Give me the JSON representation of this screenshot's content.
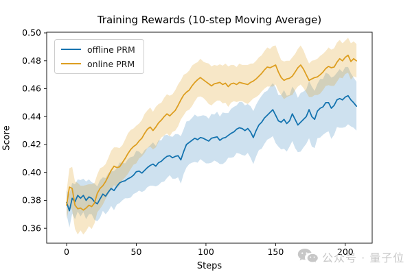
{
  "watermark": {
    "icon": "wechat-icon",
    "text": "公众号 · 量子位",
    "color": "#b5b5b5"
  },
  "chart_data": {
    "type": "line",
    "title": "Training Rewards (10-step Moving Average)",
    "xlabel": "Steps",
    "ylabel": "Score",
    "xlim": [
      -14.3,
      219.3
    ],
    "ylim": [
      0.3493,
      0.5005
    ],
    "grid": false,
    "legend_position": "upper left",
    "xticks": {
      "values": [
        0,
        50,
        100,
        150,
        200
      ],
      "labels": [
        "0",
        "50",
        "100",
        "150",
        "200"
      ]
    },
    "yticks": {
      "values": [
        0.36,
        0.38,
        0.4,
        0.42,
        0.44,
        0.46,
        0.48,
        0.5
      ],
      "labels": [
        "0.36",
        "0.38",
        "0.40",
        "0.42",
        "0.44",
        "0.46",
        "0.48",
        "0.50"
      ]
    },
    "x": [
      0,
      2,
      4,
      6,
      8,
      10,
      12,
      14,
      16,
      18,
      20,
      22,
      24,
      26,
      28,
      30,
      32,
      34,
      36,
      38,
      40,
      42,
      44,
      46,
      48,
      50,
      52,
      54,
      56,
      58,
      60,
      62,
      64,
      66,
      68,
      70,
      72,
      74,
      76,
      78,
      80,
      82,
      84,
      86,
      88,
      90,
      92,
      94,
      96,
      98,
      100,
      102,
      104,
      106,
      108,
      110,
      112,
      114,
      116,
      118,
      120,
      122,
      124,
      126,
      128,
      130,
      132,
      134,
      136,
      138,
      140,
      142,
      144,
      146,
      148,
      150,
      152,
      154,
      156,
      158,
      160,
      162,
      164,
      166,
      168,
      170,
      172,
      174,
      176,
      178,
      180,
      182,
      184,
      186,
      188,
      190,
      192,
      194,
      196,
      198,
      200,
      202,
      204,
      206,
      208
    ],
    "series": [
      {
        "name": "offline PRM",
        "color": "#1473af",
        "band_fill": "rgba(31,119,180,0.22)",
        "mean": [
          0.3785,
          0.3725,
          0.3815,
          0.379,
          0.3835,
          0.3815,
          0.3835,
          0.38,
          0.3825,
          0.3815,
          0.379,
          0.3775,
          0.381,
          0.3845,
          0.383,
          0.386,
          0.3885,
          0.387,
          0.39,
          0.3925,
          0.3935,
          0.394,
          0.3955,
          0.3965,
          0.398,
          0.4005,
          0.401,
          0.3995,
          0.4015,
          0.4035,
          0.405,
          0.406,
          0.4045,
          0.407,
          0.408,
          0.41,
          0.4115,
          0.412,
          0.4105,
          0.4115,
          0.412,
          0.409,
          0.415,
          0.42,
          0.4215,
          0.423,
          0.4245,
          0.4235,
          0.425,
          0.4245,
          0.4235,
          0.4225,
          0.4245,
          0.425,
          0.4255,
          0.423,
          0.4245,
          0.425,
          0.4265,
          0.428,
          0.429,
          0.431,
          0.432,
          0.4315,
          0.43,
          0.4315,
          0.429,
          0.425,
          0.43,
          0.434,
          0.436,
          0.439,
          0.441,
          0.443,
          0.445,
          0.441,
          0.437,
          0.436,
          0.438,
          0.435,
          0.437,
          0.442,
          0.438,
          0.434,
          0.436,
          0.438,
          0.44,
          0.445,
          0.44,
          0.438,
          0.444,
          0.446,
          0.447,
          0.45,
          0.45,
          0.446,
          0.448,
          0.452,
          0.453,
          0.452,
          0.454,
          0.455,
          0.452,
          0.45,
          0.4475
        ],
        "band": [
          0.0085,
          0.012,
          0.011,
          0.0125,
          0.0115,
          0.013,
          0.012,
          0.0135,
          0.0125,
          0.0115,
          0.013,
          0.0125,
          0.0135,
          0.012,
          0.013,
          0.0135,
          0.0125,
          0.014,
          0.013,
          0.0145,
          0.0135,
          0.0125,
          0.014,
          0.0145,
          0.0135,
          0.015,
          0.014,
          0.0135,
          0.0145,
          0.014,
          0.0145,
          0.0155,
          0.0145,
          0.016,
          0.015,
          0.0165,
          0.0155,
          0.014,
          0.015,
          0.016,
          0.0155,
          0.017,
          0.016,
          0.0165,
          0.0155,
          0.016,
          0.017,
          0.0165,
          0.0155,
          0.0165,
          0.017,
          0.016,
          0.0175,
          0.0165,
          0.018,
          0.017,
          0.0185,
          0.0175,
          0.016,
          0.0175,
          0.018,
          0.017,
          0.0185,
          0.019,
          0.018,
          0.0175,
          0.0185,
          0.019,
          0.0185,
          0.018,
          0.019,
          0.0185,
          0.0175,
          0.0185,
          0.019,
          0.02,
          0.0185,
          0.0195,
          0.021,
          0.02,
          0.0185,
          0.0195,
          0.0205,
          0.0195,
          0.021,
          0.02,
          0.0195,
          0.0205,
          0.0215,
          0.0205,
          0.0195,
          0.021,
          0.02,
          0.0215,
          0.0205,
          0.022,
          0.021,
          0.0195,
          0.021,
          0.02,
          0.0215,
          0.0205,
          0.019,
          0.018,
          0.0175
        ]
      },
      {
        "name": "online PRM",
        "color": "#dd9e20",
        "band_fill": "rgba(222,158,30,0.25)",
        "mean": [
          0.3765,
          0.3895,
          0.3885,
          0.3765,
          0.374,
          0.3745,
          0.373,
          0.3745,
          0.3765,
          0.3755,
          0.378,
          0.385,
          0.3885,
          0.3905,
          0.3935,
          0.3975,
          0.4015,
          0.4045,
          0.4035,
          0.404,
          0.407,
          0.41,
          0.4135,
          0.4165,
          0.4185,
          0.42,
          0.4225,
          0.4245,
          0.428,
          0.431,
          0.4325,
          0.43,
          0.4325,
          0.4355,
          0.4375,
          0.44,
          0.442,
          0.4405,
          0.4425,
          0.4445,
          0.448,
          0.452,
          0.4555,
          0.4575,
          0.459,
          0.462,
          0.4645,
          0.4665,
          0.468,
          0.4665,
          0.465,
          0.4635,
          0.462,
          0.4635,
          0.464,
          0.4645,
          0.463,
          0.464,
          0.4615,
          0.4635,
          0.464,
          0.463,
          0.4645,
          0.464,
          0.4635,
          0.463,
          0.4645,
          0.4655,
          0.467,
          0.469,
          0.471,
          0.4735,
          0.4755,
          0.475,
          0.476,
          0.477,
          0.472,
          0.468,
          0.466,
          0.467,
          0.4675,
          0.469,
          0.472,
          0.475,
          0.477,
          0.474,
          0.47,
          0.466,
          0.467,
          0.468,
          0.4685,
          0.47,
          0.472,
          0.4745,
          0.476,
          0.475,
          0.4755,
          0.479,
          0.4815,
          0.48,
          0.4825,
          0.484,
          0.4795,
          0.4815,
          0.48
        ],
        "band": [
          0.01,
          0.0135,
          0.0155,
          0.017,
          0.0185,
          0.016,
          0.0175,
          0.0165,
          0.015,
          0.016,
          0.0145,
          0.0135,
          0.0145,
          0.0135,
          0.0125,
          0.013,
          0.014,
          0.0135,
          0.0145,
          0.0135,
          0.0125,
          0.0135,
          0.0145,
          0.014,
          0.013,
          0.0135,
          0.0125,
          0.013,
          0.014,
          0.0135,
          0.014,
          0.0135,
          0.0145,
          0.0135,
          0.0125,
          0.0135,
          0.014,
          0.0145,
          0.0135,
          0.0145,
          0.015,
          0.014,
          0.0145,
          0.0135,
          0.014,
          0.0145,
          0.0135,
          0.0125,
          0.0135,
          0.013,
          0.0135,
          0.0145,
          0.014,
          0.0135,
          0.0125,
          0.013,
          0.0135,
          0.014,
          0.0145,
          0.0135,
          0.013,
          0.0125,
          0.0135,
          0.013,
          0.0135,
          0.014,
          0.0135,
          0.0125,
          0.013,
          0.0135,
          0.013,
          0.0135,
          0.014,
          0.0135,
          0.0145,
          0.014,
          0.0135,
          0.0125,
          0.0135,
          0.013,
          0.0125,
          0.0135,
          0.013,
          0.0135,
          0.014,
          0.0135,
          0.0125,
          0.012,
          0.013,
          0.0125,
          0.013,
          0.0135,
          0.013,
          0.0125,
          0.0135,
          0.013,
          0.0135,
          0.014,
          0.0135,
          0.0125,
          0.012,
          0.0125,
          0.013,
          0.0125,
          0.012
        ]
      }
    ]
  }
}
